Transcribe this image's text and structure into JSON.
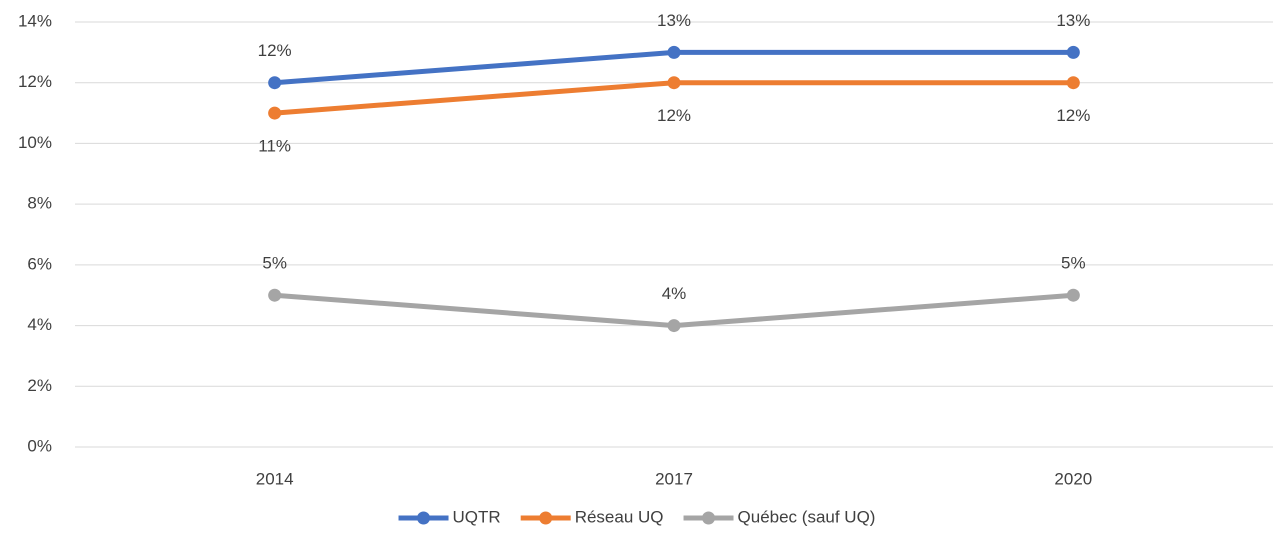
{
  "chart_data": {
    "type": "line",
    "categories": [
      "2014",
      "2017",
      "2020"
    ],
    "series": [
      {
        "name": "UQTR",
        "color": "#4472c4",
        "values": [
          12,
          13,
          13
        ],
        "value_labels": [
          "12%",
          "13%",
          "13%"
        ]
      },
      {
        "name": "Réseau UQ",
        "color": "#ed7d31",
        "values": [
          11,
          12,
          12
        ],
        "value_labels": [
          "11%",
          "12%",
          "12%"
        ]
      },
      {
        "name": "Québec (sauf UQ)",
        "color": "#a5a5a5",
        "values": [
          5,
          4,
          5
        ],
        "value_labels": [
          "5%",
          "4%",
          "5%"
        ]
      }
    ],
    "ylim": [
      0,
      14
    ],
    "yticks": [
      {
        "value": 0,
        "label": "0%"
      },
      {
        "value": 2,
        "label": "2%"
      },
      {
        "value": 4,
        "label": "4%"
      },
      {
        "value": 6,
        "label": "6%"
      },
      {
        "value": 8,
        "label": "8%"
      },
      {
        "value": 10,
        "label": "10%"
      },
      {
        "value": 12,
        "label": "12%"
      },
      {
        "value": 14,
        "label": "14%"
      }
    ],
    "grid": true,
    "legend": "bottom"
  }
}
